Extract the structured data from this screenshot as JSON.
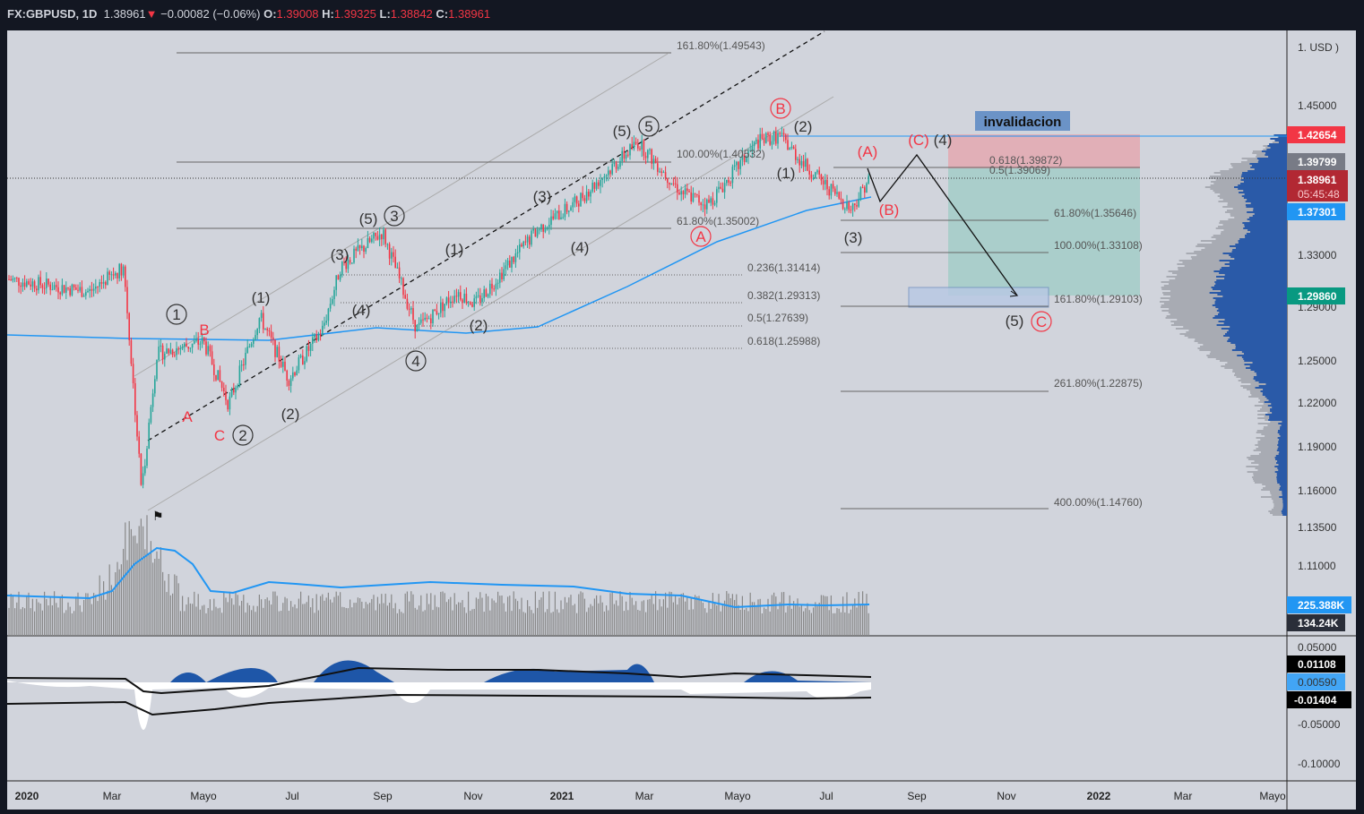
{
  "header": {
    "symbol": "FX:GBPUSD, 1D",
    "last": "1.38961",
    "change": "−0.00082 (−0.06%)",
    "o_label": "O:",
    "o": "1.39008",
    "h_label": "H:",
    "h": "1.39325",
    "l_label": "L:",
    "l": "1.38842",
    "c_label": "C:",
    "c": "1.38961"
  },
  "price_axis": {
    "currency": "1. USD )",
    "ticks": [
      "1.45000",
      "1.33000",
      "1.29000",
      "1.25000",
      "1.22000",
      "1.19000",
      "1.16000",
      "1.13500",
      "1.11000"
    ],
    "badges": {
      "resistance": "1.42654",
      "gray": "1.39799",
      "last": "1.38961",
      "countdown": "05:45:48",
      "ma": "1.37301",
      "target": "1.29860",
      "vol_ma": "225.388K",
      "vol": "134.24K"
    }
  },
  "indicator_axis": {
    "ticks": [
      "0.05000",
      "-0.05000",
      "-0.10000"
    ],
    "badges": [
      "0.01108",
      "0.00590",
      "-0.01404"
    ]
  },
  "time_axis": [
    "2020",
    "Mar",
    "Mayo",
    "Jul",
    "Sep",
    "Nov",
    "2021",
    "Mar",
    "Mayo",
    "Jul",
    "Sep",
    "Nov",
    "2022",
    "Mar",
    "Mayo"
  ],
  "fib_left": [
    "161.80%(1.49543)",
    "100.00%(1.40532)",
    "61.80%(1.35002)",
    "0.236(1.31414)",
    "0.382(1.29313)",
    "0.5(1.27639)",
    "0.618(1.25988)"
  ],
  "fib_right": [
    "0.618(1.39872)",
    "0.5(1.39069)",
    "61.80%(1.35646)",
    "100.00%(1.33108)",
    "161.80%(1.29103)",
    "261.80%(1.22875)",
    "400.00%(1.14760)"
  ],
  "invalidation_label": "invalidacion",
  "waves_gray": [
    "(5)",
    "5",
    "(3)",
    "(4)",
    "(1)",
    "(2)",
    "(5)",
    "3",
    "(3)",
    "(4)",
    "4",
    "(1)",
    "1",
    "(2)",
    "2",
    "(1)",
    "(2)",
    "(3)",
    "(5)",
    "(4)"
  ],
  "waves_red": [
    "B",
    "A",
    "C",
    "A",
    "B",
    "(A)",
    "(B)",
    "(C)",
    "C"
  ],
  "chart_data": {
    "type": "candlestick",
    "symbol": "GBPUSD",
    "key_prices": [
      [
        "2020-01",
        1.31
      ],
      [
        "2020-03-09",
        1.32
      ],
      [
        "2020-03-20",
        1.141
      ],
      [
        "2020-04-30",
        1.26
      ],
      [
        "2020-05-18",
        1.21
      ],
      [
        "2020-06-10",
        1.28
      ],
      [
        "2020-06-29",
        1.23
      ],
      [
        "2020-09-01",
        1.348
      ],
      [
        "2020-09-23",
        1.27
      ],
      [
        "2020-11-02",
        1.29
      ],
      [
        "2021-02-24",
        1.42
      ],
      [
        "2021-06-01",
        1.425
      ],
      [
        "2021-07-20",
        1.366
      ],
      [
        "2021-07-30",
        1.3896
      ]
    ]
  },
  "colors": {
    "up": "#26a69a",
    "down": "#f23645",
    "ma": "#2196f3",
    "bg": "#d1d4dc"
  }
}
